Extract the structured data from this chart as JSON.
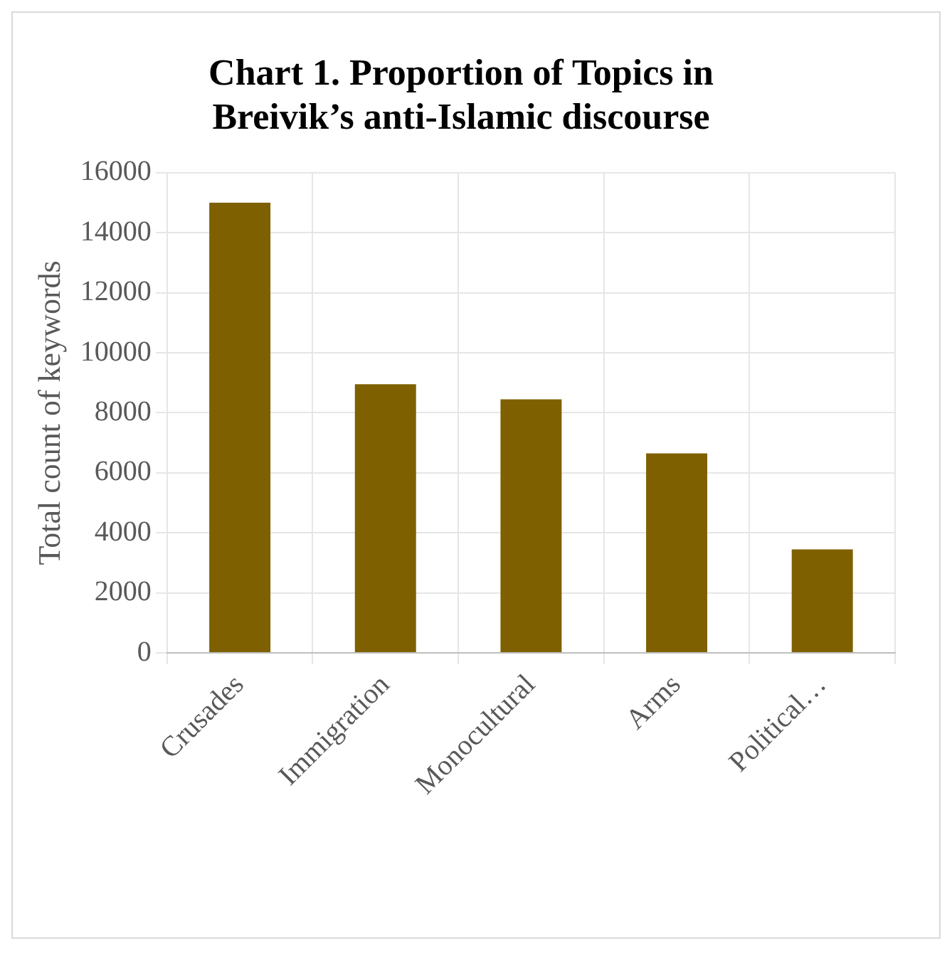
{
  "chart_data": {
    "type": "bar",
    "title": "Chart 1. Proportion of Topics in Breivik’s anti-Islamic discourse",
    "ylabel": "Total count of keywords",
    "categories": [
      "Crusades",
      "Immigration",
      "Monocultural",
      "Arms",
      "Political…"
    ],
    "values": [
      15000,
      8950,
      8450,
      6650,
      3450
    ],
    "color": "#7f6000",
    "ylim": [
      0,
      16000
    ],
    "yticks": [
      0,
      2000,
      4000,
      6000,
      8000,
      10000,
      12000,
      14000,
      16000
    ],
    "grid": true
  }
}
